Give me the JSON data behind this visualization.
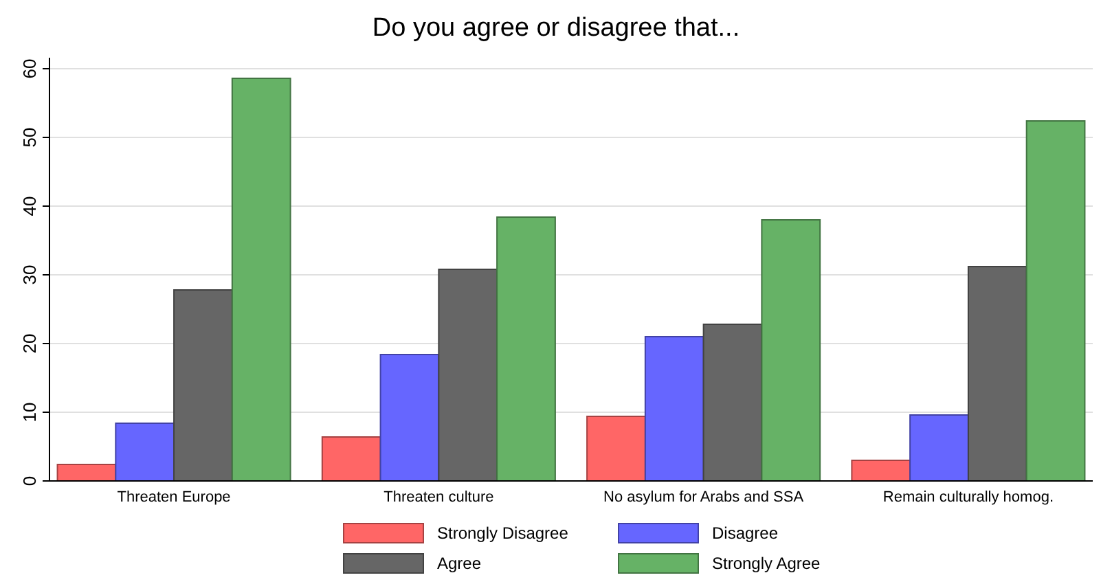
{
  "chart_data": {
    "type": "bar",
    "title": "Do you agree or disagree that...",
    "categories": [
      "Threaten Europe",
      "Threaten culture",
      "No asylum for Arabs and SSA",
      "Remain culturally homog."
    ],
    "series": [
      {
        "name": "Strongly Disagree",
        "color": "#ff6666",
        "values": [
          2.4,
          6.4,
          9.4,
          3
        ]
      },
      {
        "name": "Disagree",
        "color": "#6666ff",
        "values": [
          8.4,
          18.4,
          21,
          9.6
        ]
      },
      {
        "name": "Agree",
        "color": "#666666",
        "values": [
          27.8,
          30.8,
          22.8,
          31.2
        ]
      },
      {
        "name": "Strongly Agree",
        "color": "#66b266",
        "values": [
          58.6,
          38.4,
          38,
          52.4
        ]
      }
    ],
    "ylim": [
      0,
      60
    ],
    "yticks": [
      0,
      10,
      20,
      30,
      40,
      50,
      60
    ],
    "grid": "y",
    "legend": "bottom"
  }
}
